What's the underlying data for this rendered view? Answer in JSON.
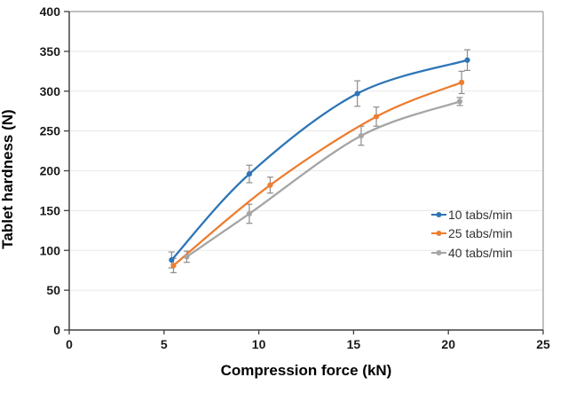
{
  "chart_data": {
    "type": "line",
    "title": "",
    "xlabel": "Compression force (kN)",
    "ylabel": "Tablet hardness (N)",
    "xlim": [
      0,
      25
    ],
    "ylim": [
      0,
      400
    ],
    "x_ticks": [
      0,
      5,
      10,
      15,
      20,
      25
    ],
    "y_ticks": [
      0,
      50,
      100,
      150,
      200,
      250,
      300,
      350,
      400
    ],
    "grid": "horizontal",
    "legend_position": "right-middle",
    "series": [
      {
        "name": "10 tabs/min",
        "color": "#2E75B6",
        "x": [
          5.4,
          9.5,
          15.2,
          21.0
        ],
        "y": [
          88,
          196,
          297,
          339
        ],
        "yerr": [
          10,
          11,
          16,
          13
        ]
      },
      {
        "name": "25 tabs/min",
        "color": "#ED7D31",
        "x": [
          5.5,
          10.6,
          16.2,
          20.7
        ],
        "y": [
          81,
          182,
          268,
          311
        ],
        "yerr": [
          9,
          10,
          12,
          14
        ]
      },
      {
        "name": "40 tabs/min",
        "color": "#A5A5A5",
        "x": [
          6.2,
          9.5,
          15.4,
          20.6
        ],
        "y": [
          92,
          146,
          244,
          287
        ],
        "yerr": [
          7,
          12,
          12,
          5
        ]
      }
    ],
    "colors": {
      "error_bar": "#8C8C8C",
      "axis": "#404040",
      "border": "#9A9A9A",
      "grid": "#E8E8E8",
      "tick_label": "#1A1A1A"
    }
  }
}
